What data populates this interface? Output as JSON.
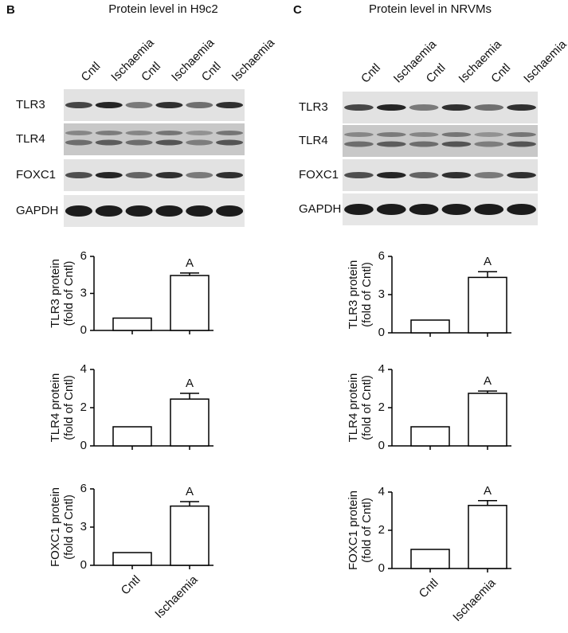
{
  "panels": [
    {
      "letter": "B",
      "title": "Protein level in H9c2",
      "lanes": [
        "Cntl",
        "Ischaemia",
        "Cntl",
        "Ischaemia",
        "Cntl",
        "Ischaemia"
      ],
      "blots": [
        "TLR3",
        "TLR4",
        "FOXC1",
        "GAPDH"
      ]
    },
    {
      "letter": "C",
      "title": "Protein level in NRVMs",
      "lanes": [
        "Cntl",
        "Ischaemia",
        "Cntl",
        "Ischaemia",
        "Cntl",
        "Ischaemia"
      ],
      "blots": [
        "TLR3",
        "TLR4",
        "FOXC1",
        "GAPDH"
      ]
    }
  ],
  "chart_data": [
    {
      "type": "bar",
      "ylabel": [
        "TLR3 protein",
        "(fold of Cntl)"
      ],
      "categories": [
        null,
        null
      ],
      "values": [
        1,
        4.45
      ],
      "errors": [
        null,
        0.2
      ],
      "annotations": [
        null,
        "A"
      ],
      "ylim": [
        0,
        6
      ],
      "yticks": [
        0,
        3,
        6
      ],
      "color": "#ffffff"
    },
    {
      "type": "bar",
      "ylabel": [
        "TLR4 protein",
        "(fold of Cntl)"
      ],
      "categories": [
        null,
        null
      ],
      "values": [
        1,
        2.45
      ],
      "errors": [
        null,
        0.3
      ],
      "annotations": [
        null,
        "A"
      ],
      "ylim": [
        0,
        4
      ],
      "yticks": [
        0,
        2,
        4
      ],
      "color": "#ffffff"
    },
    {
      "type": "bar",
      "ylabel": [
        "FOXC1 protein",
        "(fold of Cntl)"
      ],
      "categories": [
        "Cntl",
        "Ischaemia"
      ],
      "values": [
        1,
        4.65
      ],
      "errors": [
        null,
        0.35
      ],
      "annotations": [
        null,
        "A"
      ],
      "ylim": [
        0,
        6
      ],
      "yticks": [
        0,
        3,
        6
      ],
      "color": "#ffffff"
    },
    {
      "type": "bar",
      "ylabel": [
        "TLR3 protein",
        "(fold of Cntl)"
      ],
      "categories": [
        null,
        null
      ],
      "values": [
        1,
        4.35
      ],
      "errors": [
        null,
        0.45
      ],
      "annotations": [
        null,
        "A"
      ],
      "ylim": [
        0,
        6
      ],
      "yticks": [
        0,
        3,
        6
      ],
      "color": "#ffffff"
    },
    {
      "type": "bar",
      "ylabel": [
        "TLR4 protein",
        "(fold of Cntl)"
      ],
      "categories": [
        null,
        null
      ],
      "values": [
        1,
        2.75
      ],
      "errors": [
        null,
        0.12
      ],
      "annotations": [
        null,
        "A"
      ],
      "ylim": [
        0,
        4
      ],
      "yticks": [
        0,
        2,
        4
      ],
      "color": "#ffffff"
    },
    {
      "type": "bar",
      "ylabel": [
        "FOXC1 protein",
        "(fold of Cntl)"
      ],
      "categories": [
        "Cntl",
        "Ischaemia"
      ],
      "values": [
        1,
        3.3
      ],
      "errors": [
        null,
        0.25
      ],
      "annotations": [
        null,
        "A"
      ],
      "ylim": [
        0,
        4
      ],
      "yticks": [
        0,
        2,
        4
      ],
      "color": "#ffffff"
    }
  ]
}
